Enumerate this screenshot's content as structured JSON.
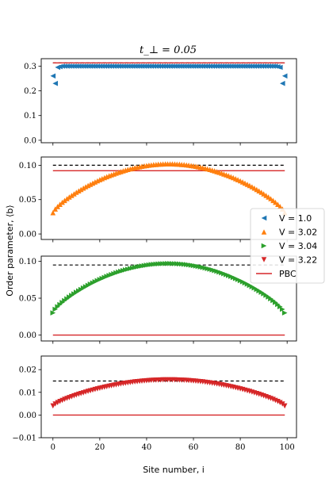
{
  "figure": {
    "title": "t_⊥ = 0.05",
    "xlabel": "Site number, i",
    "ylabel": "Order parameter, ⟨b⟩"
  },
  "legend": {
    "placement": "right-middle",
    "entries": [
      {
        "label": "V = 1.0",
        "color": "#1f77b4",
        "marker": "triangle-left"
      },
      {
        "label": "V = 3.02",
        "color": "#ff7f0e",
        "marker": "triangle-up"
      },
      {
        "label": "V = 3.04",
        "color": "#2ca02c",
        "marker": "triangle-right"
      },
      {
        "label": "V = 3.22",
        "color": "#d62728",
        "marker": "triangle-down"
      },
      {
        "label": "PBC",
        "color": "#d62728",
        "marker": "line"
      }
    ]
  },
  "colors": {
    "dashed_reference": "#000000",
    "pbc_line": "#d62728"
  },
  "chart_data": [
    {
      "type": "scatter",
      "series": [
        {
          "name": "V = 1.0",
          "color": "#1f77b4",
          "marker": "triangle-left",
          "shape": "flat",
          "edge": 0.26,
          "center": 0.3,
          "edge2": 0.23,
          "plateau_width": 4
        }
      ],
      "x_range": [
        0,
        99
      ],
      "reference_dashed": 0.313,
      "pbc": 0.313,
      "ylim": [
        -0.01,
        0.33
      ],
      "yticks": [
        "0.0",
        "0.1",
        "0.2",
        "0.3"
      ],
      "ytick_values": [
        0.0,
        0.1,
        0.2,
        0.3
      ],
      "xlim": [
        -5,
        104
      ],
      "grid": false
    },
    {
      "type": "scatter",
      "series": [
        {
          "name": "V = 3.02",
          "color": "#ff7f0e",
          "marker": "triangle-up",
          "shape": "dome",
          "edge": 0.031,
          "center": 0.102
        }
      ],
      "x_range": [
        0,
        99
      ],
      "reference_dashed": 0.1,
      "pbc": 0.092,
      "ylim": [
        -0.008,
        0.112
      ],
      "yticks": [
        "0.00",
        "0.05",
        "0.10"
      ],
      "ytick_values": [
        0.0,
        0.05,
        0.1
      ],
      "xlim": [
        -5,
        104
      ],
      "grid": false
    },
    {
      "type": "scatter",
      "series": [
        {
          "name": "V = 3.04",
          "color": "#2ca02c",
          "marker": "triangle-right",
          "shape": "dome",
          "edge": 0.03,
          "center": 0.097
        }
      ],
      "x_range": [
        0,
        99
      ],
      "reference_dashed": 0.095,
      "pbc": 0.0,
      "ylim": [
        -0.008,
        0.107
      ],
      "yticks": [
        "0.00",
        "0.05",
        "0.10"
      ],
      "ytick_values": [
        0.0,
        0.05,
        0.1
      ],
      "xlim": [
        -5,
        104
      ],
      "grid": false
    },
    {
      "type": "scatter",
      "series": [
        {
          "name": "V = 3.22",
          "color": "#d62728",
          "marker": "triangle-down",
          "shape": "dome",
          "edge": 0.004,
          "center": 0.0155
        }
      ],
      "x_range": [
        0,
        99
      ],
      "reference_dashed": 0.015,
      "pbc": 0.0,
      "ylim": [
        -0.01,
        0.026
      ],
      "yticks": [
        "−0.01",
        "0.00",
        "0.01",
        "0.02"
      ],
      "ytick_values": [
        -0.01,
        0.0,
        0.01,
        0.02
      ],
      "xlim": [
        -5,
        104
      ],
      "xticks": [
        "0",
        "20",
        "40",
        "60",
        "80",
        "100"
      ],
      "xtick_values": [
        0,
        20,
        40,
        60,
        80,
        100
      ],
      "grid": false
    }
  ]
}
